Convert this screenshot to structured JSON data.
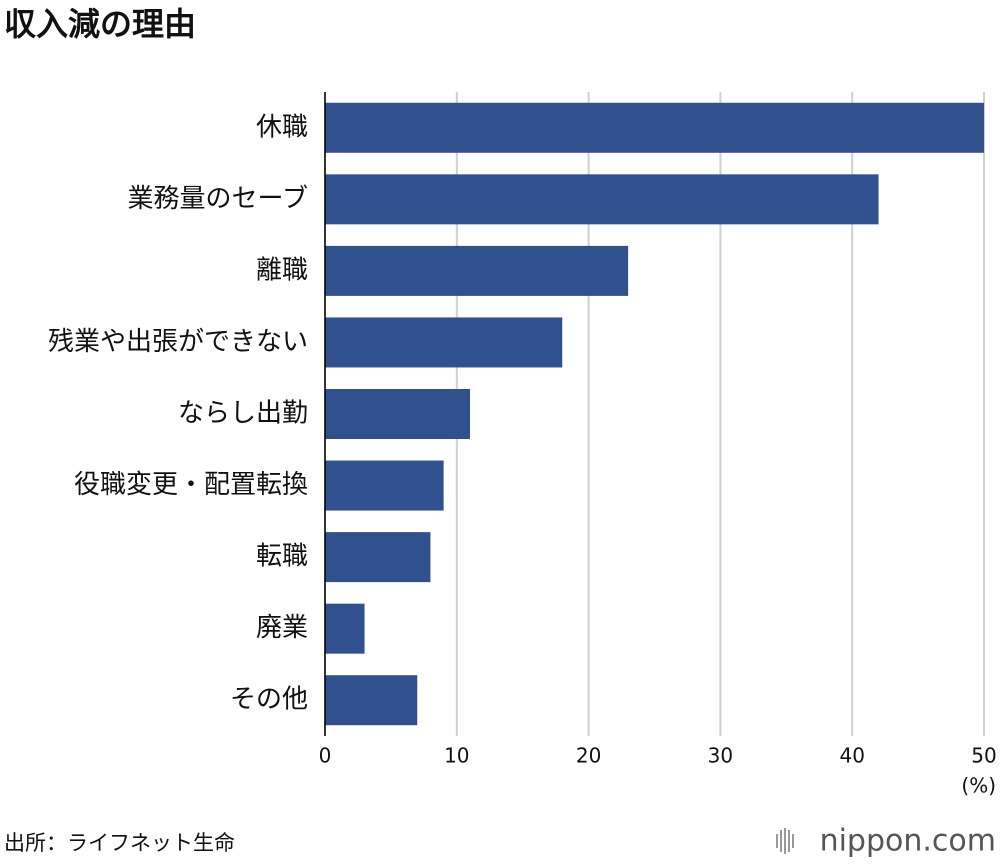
{
  "chart_data": {
    "type": "bar",
    "orientation": "horizontal",
    "title": "収入減の理由",
    "categories": [
      "休職",
      "業務量のセーブ",
      "離職",
      "残業や出張ができない",
      "ならし出勤",
      "役職変更・配置転換",
      "転職",
      "廃業",
      "その他"
    ],
    "values": [
      50,
      42,
      23,
      18,
      11,
      9,
      8,
      3,
      7
    ],
    "color": "#30508e",
    "xlim": [
      0,
      50
    ],
    "xticks": [
      0,
      10,
      20,
      30,
      40,
      50
    ],
    "grid": true,
    "unit_label": "(%)",
    "source": "出所：ライフネット生命",
    "logo": "nippon.com"
  }
}
